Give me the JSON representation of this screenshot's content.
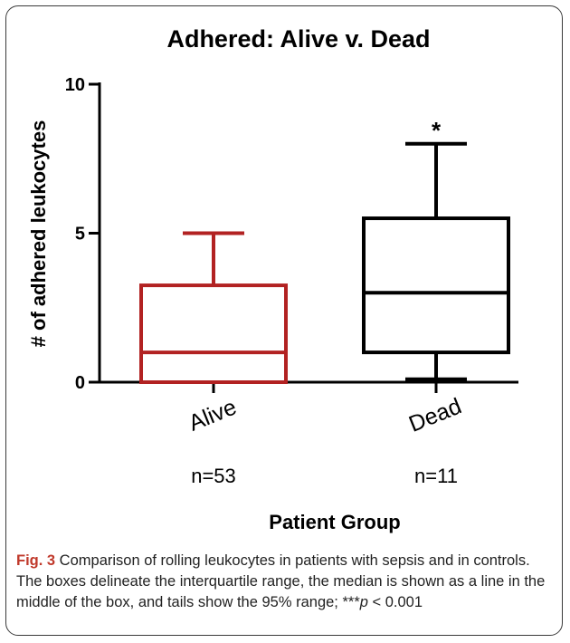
{
  "chart_data": {
    "type": "box",
    "title": "Adhered: Alive v. Dead",
    "ylabel": "# of adhered leukocytes",
    "xlabel": "Patient Group",
    "ylim": [
      0,
      10
    ],
    "yticks": [
      0,
      5,
      10
    ],
    "categories": [
      "Alive",
      "Dead"
    ],
    "counts": [
      "n=53",
      "n=11"
    ],
    "boxes": [
      {
        "category": "Alive",
        "whisker_low": 0,
        "q1": 0,
        "median": 1,
        "q3": 3.25,
        "whisker_high": 5,
        "color": "#b22222"
      },
      {
        "category": "Dead",
        "whisker_low": 0.1,
        "q1": 1,
        "median": 3,
        "q3": 5.5,
        "whisker_high": 8,
        "color": "#000000",
        "annotation": "*"
      }
    ]
  },
  "caption": {
    "figure_label": "Fig. 3",
    "text_before_p": " Comparison of rolling leukocytes in patients with sepsis and in controls. The boxes delineate the interquartile range, the median is shown as a line in the middle of the box, and tails show the 95% range; ***",
    "p_symbol": "p",
    "text_after_p": " < 0.001"
  }
}
